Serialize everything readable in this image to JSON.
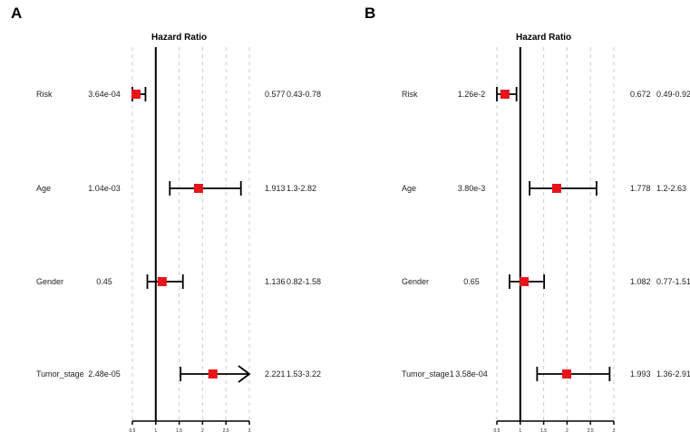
{
  "chart_data": [
    {
      "type": "forest",
      "panel_label": "A",
      "title": "Hazard Ratio",
      "xlim": [
        0.5,
        3
      ],
      "x_ticks": [
        "0.5",
        "1",
        "1.5",
        "2",
        "2.5",
        "3"
      ],
      "reference_line": 1,
      "grid": "dashed vertical",
      "rows": [
        {
          "variable": "Risk",
          "pvalue": "3.64e-04",
          "hr": 0.577,
          "hr_label": "0.577",
          "lower": 0.43,
          "upper": 0.78,
          "ci_label": "0.43-0.78"
        },
        {
          "variable": "Age",
          "pvalue": "1.04e-03",
          "hr": 1.913,
          "hr_label": "1.913",
          "lower": 1.3,
          "upper": 2.82,
          "ci_label": "1.3-2.82"
        },
        {
          "variable": "Gender",
          "pvalue": "0.45",
          "hr": 1.136,
          "hr_label": "1.136",
          "lower": 0.82,
          "upper": 1.58,
          "ci_label": "0.82-1.58"
        },
        {
          "variable": "Tumor_stage",
          "pvalue": "2.48e-05",
          "hr": 2.221,
          "hr_label": "2.221",
          "lower": 1.53,
          "upper": 3.22,
          "ci_label": "1.53-3.22"
        }
      ]
    },
    {
      "type": "forest",
      "panel_label": "B",
      "title": "Hazard Ratio",
      "xlim": [
        0.5,
        3
      ],
      "x_ticks": [
        "0.5",
        "1",
        "1.5",
        "2",
        "2.5",
        "3"
      ],
      "reference_line": 1,
      "grid": "dashed vertical",
      "rows": [
        {
          "variable": "Risk",
          "pvalue": "1.26e-2",
          "hr": 0.672,
          "hr_label": "0.672",
          "lower": 0.49,
          "upper": 0.92,
          "ci_label": "0.49-0.92"
        },
        {
          "variable": "Age",
          "pvalue": "3.80e-3",
          "hr": 1.778,
          "hr_label": "1.778",
          "lower": 1.2,
          "upper": 2.63,
          "ci_label": "1.2-2.63"
        },
        {
          "variable": "Gender",
          "pvalue": "0.65",
          "hr": 1.082,
          "hr_label": "1.082",
          "lower": 0.77,
          "upper": 1.51,
          "ci_label": "0.77-1.51"
        },
        {
          "variable": "Tumor_stage1",
          "pvalue": "3.58e-04",
          "hr": 1.993,
          "hr_label": "1.993",
          "lower": 1.36,
          "upper": 2.91,
          "ci_label": "1.36-2.91"
        }
      ]
    }
  ],
  "colors": {
    "box": "#e8141b",
    "line": "#000000",
    "grid": "#cccccc"
  }
}
